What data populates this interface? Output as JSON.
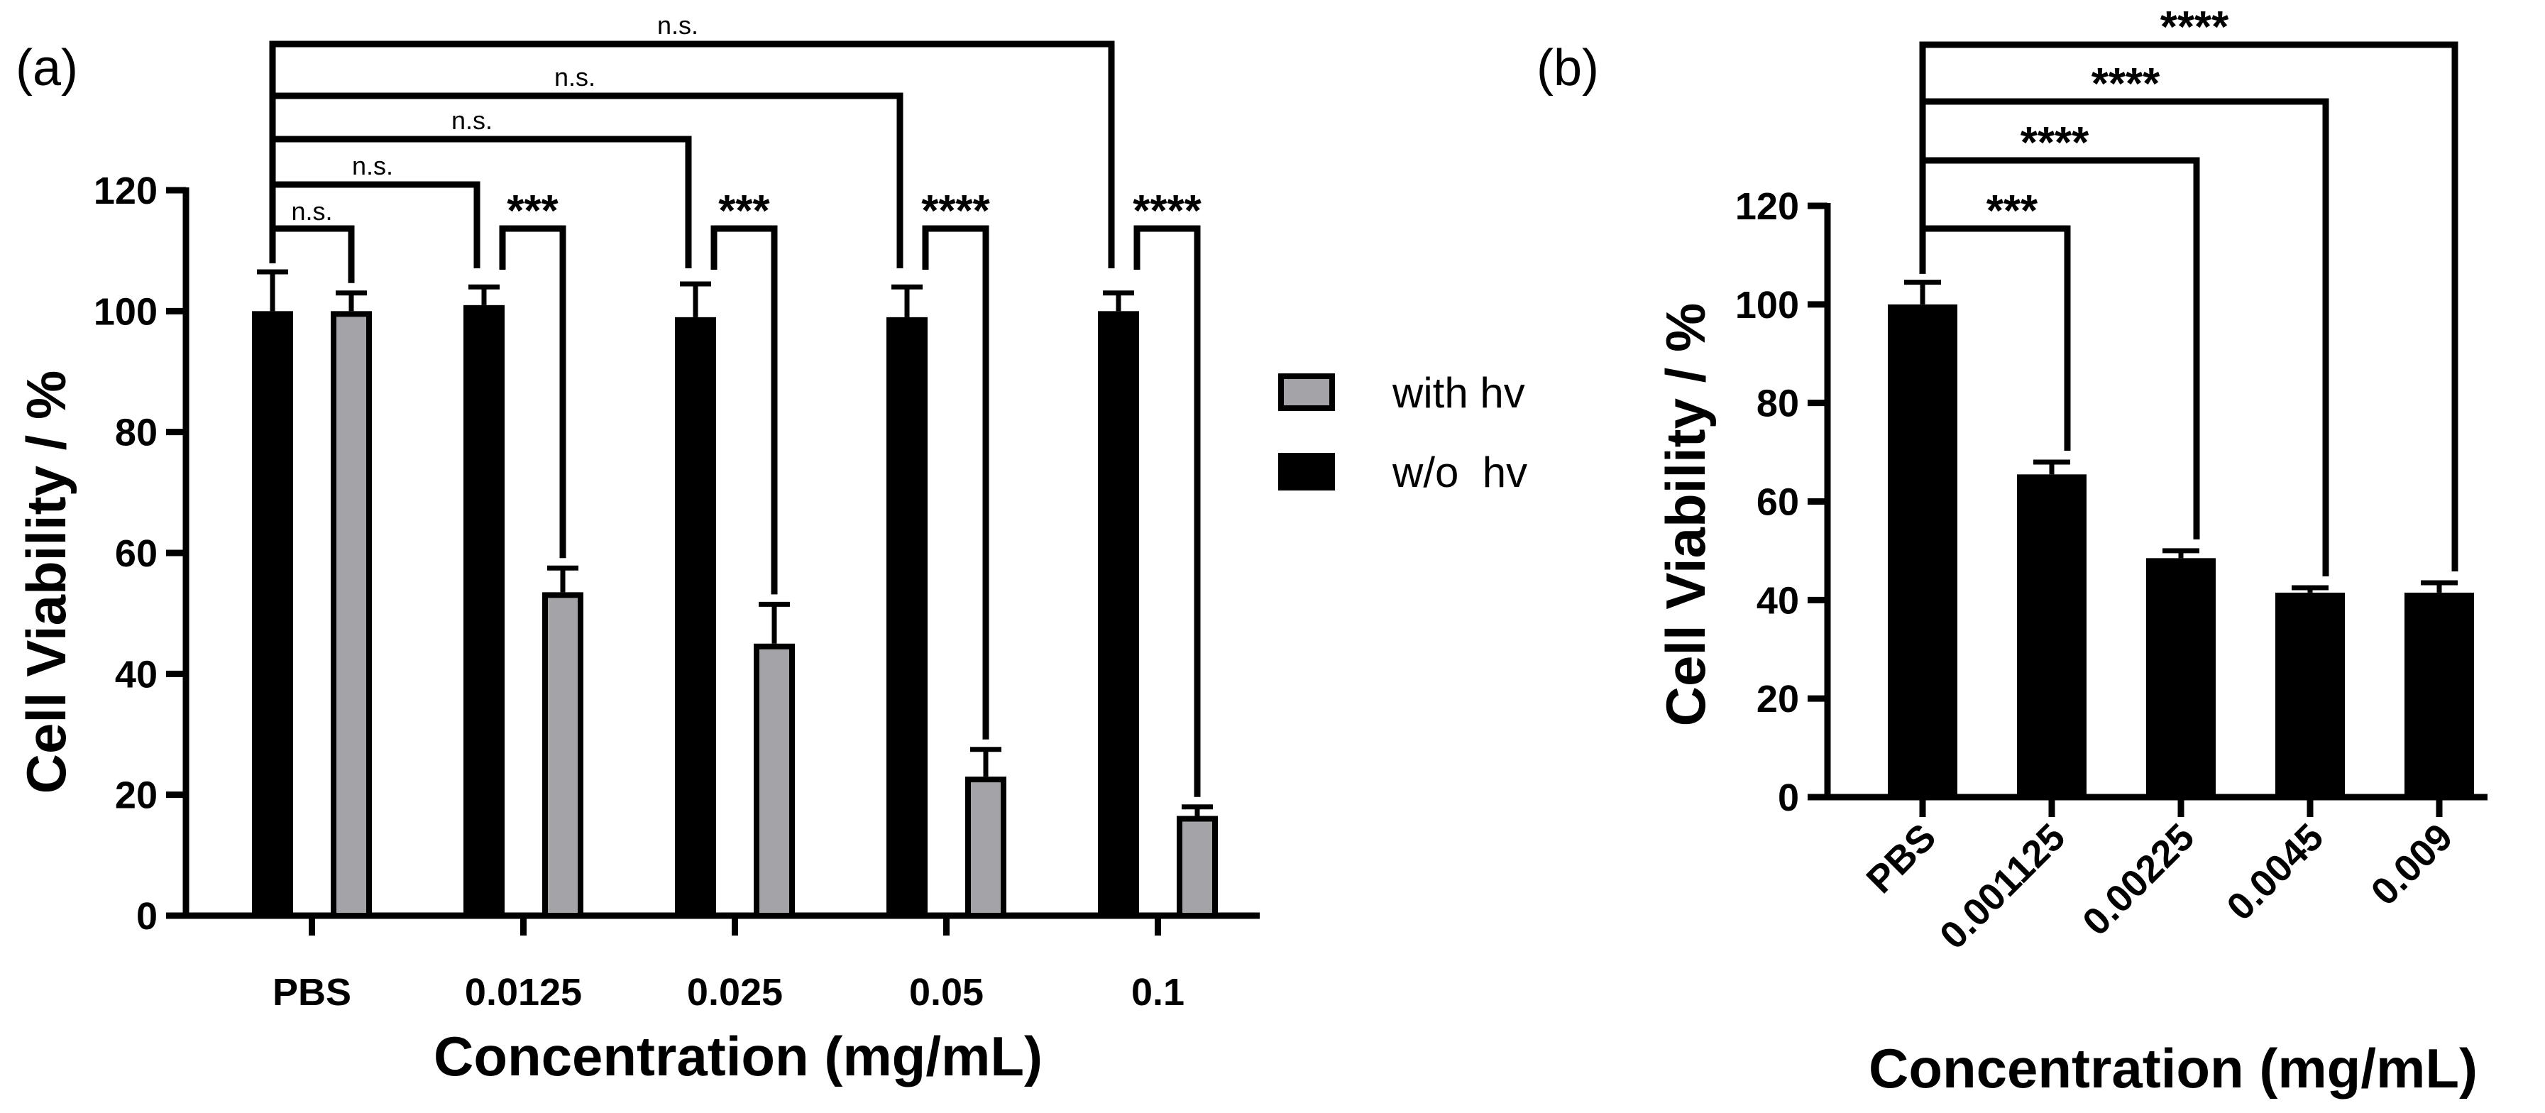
{
  "chart_data": [
    {
      "panel_label": "(a)",
      "type": "bar",
      "categories": [
        "PBS",
        "0.0125",
        "0.025",
        "0.05",
        "0.1"
      ],
      "series": [
        {
          "name": "w/o  hv",
          "color": "#000000",
          "values": [
            100,
            101,
            99,
            99,
            100
          ],
          "errors": [
            6.5,
            3,
            5.5,
            5,
            3
          ]
        },
        {
          "name": "with hv",
          "color": "#a3a3a8",
          "values": [
            100,
            53.5,
            45,
            23,
            16.5
          ],
          "errors": [
            3,
            4,
            6.5,
            4.5,
            1.5
          ]
        }
      ],
      "xlabel": "Concentration (mg/mL)",
      "ylabel": "Cell Viability / %",
      "ylim": [
        0,
        120
      ],
      "yticks": [
        0,
        20,
        40,
        60,
        80,
        100,
        120
      ],
      "legend": {
        "placement": "right",
        "entries": [
          "with hv",
          "w/o  hv"
        ]
      },
      "significance": {
        "within_pairs": [
          {
            "category": "PBS",
            "label": "n.s."
          },
          {
            "category": "0.0125",
            "label": "***"
          },
          {
            "category": "0.025",
            "label": "***"
          },
          {
            "category": "0.05",
            "label": "****"
          },
          {
            "category": "0.1",
            "label": "****"
          }
        ],
        "vs_control": [
          {
            "from": "PBS",
            "to": "0.0125",
            "label": "n.s."
          },
          {
            "from": "PBS",
            "to": "0.025",
            "label": "n.s."
          },
          {
            "from": "PBS",
            "to": "0.05",
            "label": "n.s."
          },
          {
            "from": "PBS",
            "to": "0.1",
            "label": "n.s."
          }
        ]
      }
    },
    {
      "panel_label": "(b)",
      "type": "bar",
      "categories": [
        "PBS",
        "0.001125",
        "0.00225",
        "0.0045",
        "0.009"
      ],
      "values": [
        100,
        65.5,
        48.5,
        41.5,
        41.5
      ],
      "errors": [
        4.5,
        2.5,
        1.5,
        1,
        2
      ],
      "bar_color": "#000000",
      "xlabel": "Concentration (mg/mL)",
      "ylabel": "Cell Viability / %",
      "ylim": [
        0,
        120
      ],
      "yticks": [
        0,
        20,
        40,
        60,
        80,
        100,
        120
      ],
      "significance": {
        "vs_control": [
          {
            "from": "PBS",
            "to": "0.001125",
            "label": "***"
          },
          {
            "from": "PBS",
            "to": "0.00225",
            "label": "****"
          },
          {
            "from": "PBS",
            "to": "0.0045",
            "label": "****"
          },
          {
            "from": "PBS",
            "to": "0.009",
            "label": "****"
          }
        ]
      }
    }
  ]
}
